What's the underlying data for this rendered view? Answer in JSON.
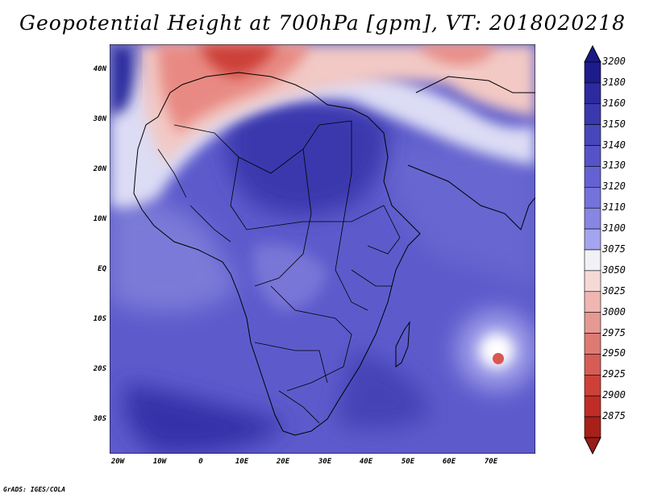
{
  "title": "Geopotential Height at 700hPa [gpm], VT: 2018020218",
  "credit": "GrADS: IGES/COLA",
  "map": {
    "region": "Africa",
    "lon_range": [
      -23,
      80
    ],
    "lat_range": [
      -37,
      45
    ],
    "lat_labels": [
      "40N",
      "30N",
      "20N",
      "10N",
      "EQ",
      "10S",
      "20S",
      "30S"
    ],
    "lon_labels": [
      "20W",
      "10W",
      "0",
      "10E",
      "20E",
      "30E",
      "40E",
      "50E",
      "60E",
      "70E"
    ]
  },
  "colorbar": {
    "levels": [
      "3200",
      "3180",
      "3160",
      "3150",
      "3140",
      "3130",
      "3120",
      "3110",
      "3100",
      "3075",
      "3050",
      "3025",
      "3000",
      "2975",
      "2950",
      "2925",
      "2900",
      "2875"
    ],
    "colors": [
      "#1e1b8c",
      "#2c2a9e",
      "#3a38ad",
      "#4846bb",
      "#5553c7",
      "#6462d2",
      "#7472db",
      "#8886e4",
      "#a5a4ee",
      "#f1f1f7",
      "#f4d9d7",
      "#efb6b2",
      "#e69892",
      "#de7a73",
      "#d65c55",
      "#cc4038",
      "#c02d26",
      "#a91f1a"
    ],
    "top_color": "#1a1a85",
    "bottom_color": "#9a1c16"
  }
}
